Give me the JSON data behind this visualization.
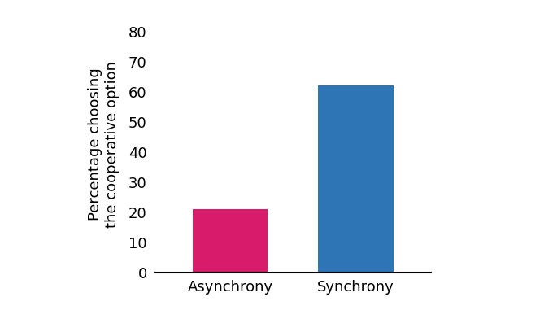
{
  "categories": [
    "Asynchrony",
    "Synchrony"
  ],
  "values": [
    21,
    62
  ],
  "bar_colors": [
    "#D81B6A",
    "#2E75B6"
  ],
  "bar_width": 0.6,
  "ylabel_line1": "Percentage choosing",
  "ylabel_line2": "the cooperative option",
  "ylim": [
    0,
    85
  ],
  "yticks": [
    0,
    10,
    20,
    30,
    40,
    50,
    60,
    70,
    80
  ],
  "background_color": "#ffffff",
  "tick_fontsize": 13,
  "label_fontsize": 13
}
